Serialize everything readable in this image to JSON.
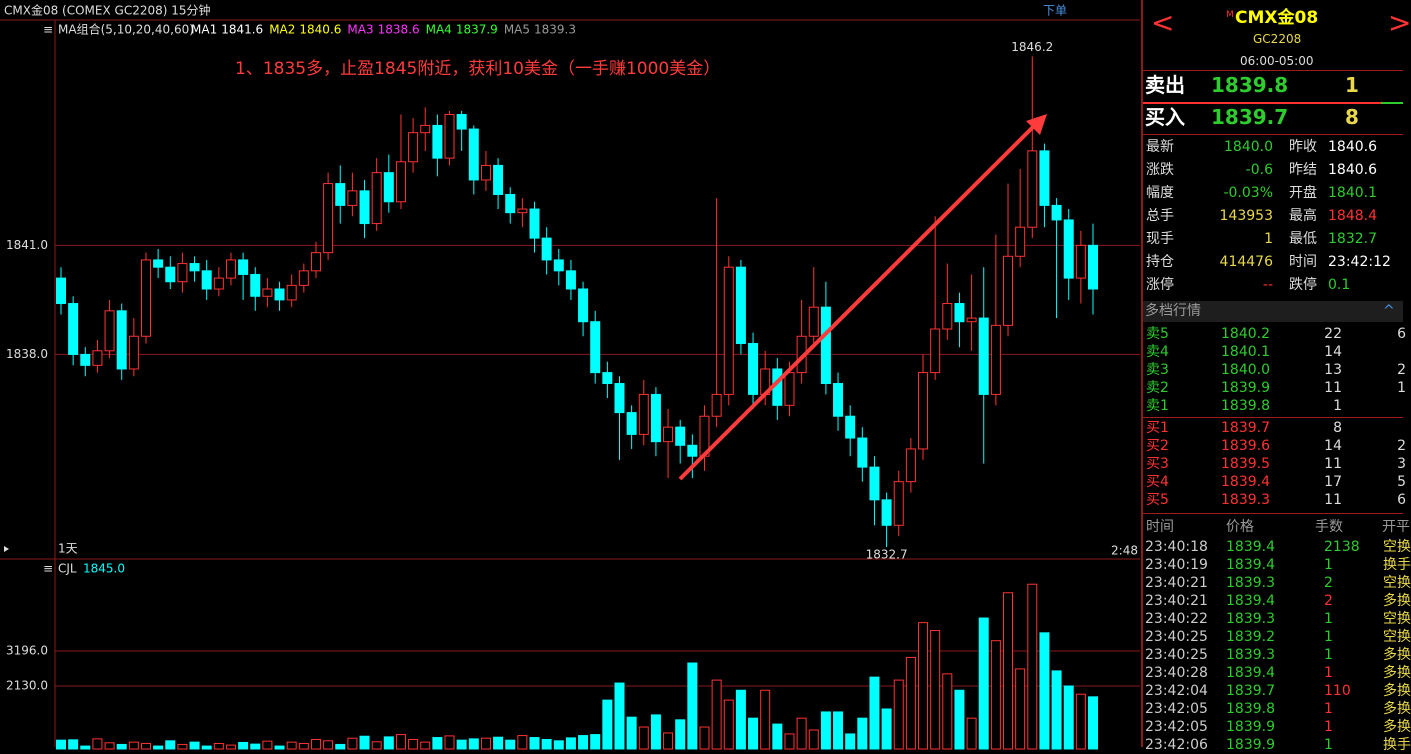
{
  "window": {
    "title": "CMX金08 (COMEX GC2208) 15分钟",
    "order_button": "下单"
  },
  "chart_data": [
    {
      "type": "candlestick",
      "legend_title": "MA组合(5,10,20,40,60)",
      "indicators": [
        {
          "name": "MA1",
          "value": "1841.6",
          "color": "#ffffff"
        },
        {
          "name": "MA2",
          "value": "1840.6",
          "color": "#ffff00"
        },
        {
          "name": "MA3",
          "value": "1838.6",
          "color": "#ff33ff"
        },
        {
          "name": "MA4",
          "value": "1837.9",
          "color": "#33ff33"
        },
        {
          "name": "MA5",
          "value": "1839.3",
          "color": "#999999"
        }
      ],
      "annotation": "1、1835多，止盈1845附近，获利10美金（一手赚1000美金）",
      "period_label": "1天",
      "time_label": "2:48",
      "open": [
        1840.1,
        1839.4,
        1838.0,
        1837.7,
        1838.1,
        1839.2,
        1837.6,
        1838.5,
        1840.6,
        1840.4,
        1840.0,
        1840.5,
        1840.3,
        1839.8,
        1840.1,
        1840.6,
        1840.2,
        1839.6,
        1839.8,
        1839.5,
        1839.9,
        1840.3,
        1840.8,
        1842.7,
        1842.1,
        1842.5,
        1841.6,
        1843.0,
        1842.2,
        1843.3,
        1844.1,
        1844.3,
        1843.4,
        1844.6,
        1844.2,
        1842.8,
        1843.2,
        1842.4,
        1841.9,
        1842.0,
        1841.2,
        1840.6,
        1840.3,
        1839.8,
        1838.9,
        1837.5,
        1837.2,
        1836.4,
        1835.8,
        1836.9,
        1835.6,
        1836.0,
        1835.5,
        1835.2,
        1836.3,
        1836.9,
        1840.4,
        1838.3,
        1836.9,
        1837.6,
        1836.6,
        1837.5,
        1838.5,
        1839.3,
        1837.2,
        1836.3,
        1835.7,
        1834.9,
        1834.0,
        1833.3,
        1834.5,
        1835.4,
        1837.5,
        1838.7,
        1839.4,
        1838.9,
        1839.0,
        1836.9,
        1838.8,
        1840.7,
        1841.5,
        1843.6,
        1842.1,
        1841.7,
        1840.1,
        1841.0
      ],
      "high": [
        1840.4,
        1839.6,
        1838.2,
        1838.4,
        1839.5,
        1839.4,
        1839.0,
        1840.8,
        1840.9,
        1840.7,
        1840.8,
        1840.7,
        1840.6,
        1840.4,
        1840.8,
        1840.8,
        1840.4,
        1840.1,
        1840.0,
        1840.2,
        1840.5,
        1841.1,
        1843.0,
        1843.2,
        1843.0,
        1842.8,
        1843.4,
        1843.5,
        1844.6,
        1844.5,
        1844.8,
        1844.6,
        1844.7,
        1844.7,
        1844.3,
        1843.6,
        1843.4,
        1842.6,
        1842.3,
        1842.2,
        1841.5,
        1840.9,
        1840.6,
        1840.0,
        1839.2,
        1837.8,
        1837.4,
        1836.6,
        1837.3,
        1837.1,
        1836.5,
        1836.2,
        1835.8,
        1836.6,
        1842.3,
        1840.7,
        1840.6,
        1838.6,
        1838.1,
        1837.9,
        1837.8,
        1839.5,
        1840.4,
        1840.0,
        1837.5,
        1836.6,
        1836.0,
        1835.2,
        1834.2,
        1834.8,
        1835.7,
        1838.0,
        1841.8,
        1840.5,
        1839.7,
        1840.2,
        1840.4,
        1841.3,
        1842.7,
        1843.1,
        1846.2,
        1843.8,
        1842.3,
        1842.0,
        1841.4,
        1841.6
      ],
      "low": [
        1839.1,
        1837.7,
        1837.4,
        1837.5,
        1837.9,
        1837.3,
        1837.4,
        1838.3,
        1840.1,
        1839.8,
        1839.7,
        1840.0,
        1839.5,
        1839.6,
        1839.9,
        1839.5,
        1839.2,
        1839.3,
        1839.2,
        1839.3,
        1839.7,
        1840.1,
        1840.6,
        1841.6,
        1841.8,
        1841.2,
        1841.4,
        1841.9,
        1842.0,
        1843.0,
        1843.6,
        1842.9,
        1843.2,
        1843.6,
        1842.4,
        1842.5,
        1842.0,
        1841.6,
        1841.5,
        1840.8,
        1840.2,
        1839.9,
        1839.5,
        1838.5,
        1837.2,
        1836.8,
        1835.1,
        1835.4,
        1835.5,
        1835.2,
        1834.6,
        1835.0,
        1834.6,
        1834.8,
        1836.0,
        1836.6,
        1838.0,
        1836.5,
        1836.6,
        1836.2,
        1836.3,
        1837.2,
        1838.2,
        1836.9,
        1835.9,
        1835.2,
        1834.5,
        1833.3,
        1832.7,
        1833.0,
        1834.2,
        1835.1,
        1837.3,
        1838.4,
        1838.2,
        1838.1,
        1835.0,
        1836.6,
        1838.5,
        1840.4,
        1841.2,
        1841.5,
        1839.0,
        1839.5,
        1839.4,
        1839.1
      ],
      "close": [
        1839.4,
        1838.0,
        1837.7,
        1838.1,
        1839.2,
        1837.6,
        1838.5,
        1840.6,
        1840.4,
        1840.0,
        1840.5,
        1840.3,
        1839.8,
        1840.1,
        1840.6,
        1840.2,
        1839.6,
        1839.8,
        1839.5,
        1839.9,
        1840.3,
        1840.8,
        1842.7,
        1842.1,
        1842.5,
        1841.6,
        1843.0,
        1842.2,
        1843.3,
        1844.1,
        1844.3,
        1843.4,
        1844.6,
        1844.2,
        1842.8,
        1843.2,
        1842.4,
        1841.9,
        1842.0,
        1841.2,
        1840.6,
        1840.3,
        1839.8,
        1838.9,
        1837.5,
        1837.2,
        1836.4,
        1835.8,
        1836.9,
        1835.6,
        1836.0,
        1835.5,
        1835.2,
        1836.3,
        1836.9,
        1840.4,
        1838.3,
        1836.9,
        1837.6,
        1836.6,
        1837.5,
        1838.5,
        1839.3,
        1837.2,
        1836.3,
        1835.7,
        1834.9,
        1834.0,
        1833.3,
        1834.5,
        1835.4,
        1837.5,
        1838.7,
        1839.4,
        1838.9,
        1839.0,
        1836.9,
        1838.8,
        1840.7,
        1841.5,
        1843.6,
        1842.1,
        1841.7,
        1840.1,
        1841.0,
        1839.8
      ],
      "ylim": [
        1832.4,
        1847.2
      ],
      "yticks": [
        {
          "value": 1841,
          "label": "1841.0"
        },
        {
          "value": 1838,
          "label": "1838.0"
        }
      ],
      "max_index": 80,
      "min_index": 68,
      "up_color": "#ff3232",
      "down_color": "#00ffff",
      "grid": true
    },
    {
      "type": "bar",
      "title": "CJL",
      "indicator_value": "1845.0",
      "values": [
        480,
        490,
        300,
        520,
        400,
        350,
        420,
        380,
        300,
        460,
        350,
        420,
        300,
        380,
        330,
        410,
        360,
        450,
        300,
        420,
        380,
        500,
        460,
        350,
        540,
        600,
        430,
        580,
        650,
        500,
        420,
        560,
        610,
        480,
        520,
        540,
        570,
        480,
        620,
        560,
        500,
        460,
        550,
        620,
        650,
        1700,
        2220,
        1180,
        880,
        1250,
        700,
        1100,
        2830,
        880,
        2310,
        1700,
        2000,
        1150,
        2000,
        970,
        670,
        1150,
        790,
        1340,
        1340,
        670,
        1150,
        2400,
        1430,
        2310,
        3000,
        4060,
        3820,
        2500,
        2000,
        1150,
        4200,
        3510,
        4970,
        2650,
        5230,
        3750,
        2590,
        2130,
        1880,
        1800
      ],
      "ylim": [
        272,
        5511
      ],
      "yticks": [
        {
          "value": 3196,
          "label": "3196.0"
        },
        {
          "value": 2130,
          "label": "2130.0"
        }
      ],
      "grid": true
    }
  ],
  "panel": {
    "marker": "M",
    "name": "CMX金08",
    "code": "GC2208",
    "hours": "06:00-05:00",
    "sell": {
      "label": "卖出",
      "price": "1839.8",
      "qty": "1"
    },
    "buy": {
      "label": "买入",
      "price": "1839.7",
      "qty": "8"
    },
    "stats": [
      [
        "最新",
        "1840.0",
        "昨收",
        "1840.6"
      ],
      [
        "涨跌",
        "-0.6",
        "昨结",
        "1840.6"
      ],
      [
        "幅度",
        "-0.03%",
        "开盘",
        "1840.1"
      ],
      [
        "总手",
        "143953",
        "最高",
        "1848.4"
      ],
      [
        "现手",
        "1",
        "最低",
        "1832.7"
      ],
      [
        "持仓",
        "414476",
        "时间",
        "23:42:12"
      ],
      [
        "涨停",
        "--",
        "跌停",
        "0.1"
      ]
    ],
    "stat_colors": [
      [
        "#2ecc2e",
        "#ffffff"
      ],
      [
        "#2ecc2e",
        "#ffffff"
      ],
      [
        "#2ecc2e",
        "#2ecc2e"
      ],
      [
        "#e8d84a",
        "#ff3232"
      ],
      [
        "#e8d84a",
        "#2ecc2e"
      ],
      [
        "#e8d84a",
        "#ffffff"
      ],
      [
        "#ff3232",
        "#2ecc2e"
      ]
    ],
    "depth_title": "多档行情",
    "asks": [
      [
        "卖5",
        "1840.2",
        "22",
        "6"
      ],
      [
        "卖4",
        "1840.1",
        "14"
      ],
      [
        "卖3",
        "1840.0",
        "13",
        "2"
      ],
      [
        "卖2",
        "1839.9",
        "11",
        "1"
      ],
      [
        "卖1",
        "1839.8",
        "1"
      ]
    ],
    "bids": [
      [
        "买1",
        "1839.7",
        "8"
      ],
      [
        "买2",
        "1839.6",
        "14",
        "2"
      ],
      [
        "买3",
        "1839.5",
        "11",
        "3"
      ],
      [
        "买4",
        "1839.4",
        "17",
        "5"
      ],
      [
        "买5",
        "1839.3",
        "11",
        "6"
      ]
    ],
    "trades_header": [
      "时间",
      "价格",
      "手数",
      "开平"
    ],
    "trades": [
      [
        "23:40:18",
        "1839.4",
        "2138",
        "空换"
      ],
      [
        "23:40:19",
        "1839.4",
        "1",
        "换手"
      ],
      [
        "23:40:21",
        "1839.3",
        "2",
        "空换"
      ],
      [
        "23:40:21",
        "1839.4",
        "2",
        "多换"
      ],
      [
        "23:40:22",
        "1839.3",
        "1",
        "空换"
      ],
      [
        "23:40:25",
        "1839.2",
        "1",
        "空换"
      ],
      [
        "23:40:25",
        "1839.3",
        "1",
        "多换"
      ],
      [
        "23:40:28",
        "1839.4",
        "1",
        "多换"
      ],
      [
        "23:42:04",
        "1839.7",
        "110",
        "多换"
      ],
      [
        "23:42:05",
        "1839.8",
        "1",
        "多换"
      ],
      [
        "23:42:05",
        "1839.9",
        "1",
        "多换"
      ],
      [
        "23:42:06",
        "1839.9",
        "1",
        "换手"
      ]
    ],
    "trade_qty_colors": [
      "#2ecc2e",
      "#2ecc2e",
      "#2ecc2e",
      "#ff3232",
      "#2ecc2e",
      "#2ecc2e",
      "#2ecc2e",
      "#ff3232",
      "#ff3232",
      "#ff3232",
      "#ff3232",
      "#2ecc2e"
    ]
  }
}
